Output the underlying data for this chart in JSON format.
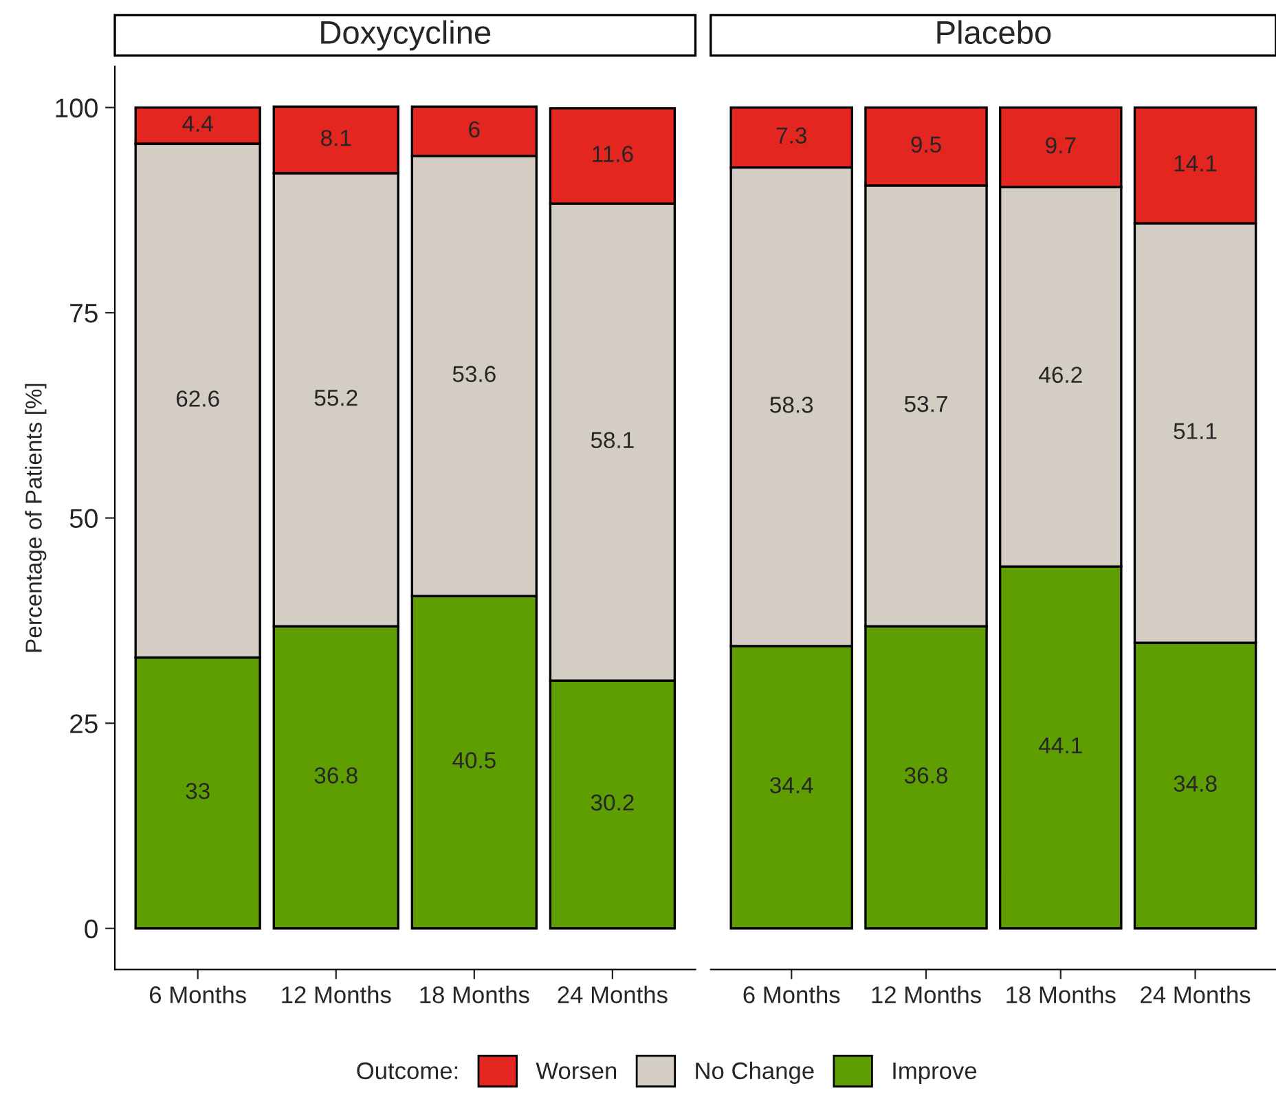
{
  "chart_data": [
    {
      "type": "bar",
      "title": "Doxycycline",
      "ylabel": "Percentage of Patients [%]",
      "categories": [
        "6 Months",
        "12 Months",
        "18 Months",
        "24 Months"
      ],
      "stacked": true,
      "data_labels": true,
      "ylim": [
        -5,
        105
      ],
      "yticks": [
        0,
        25,
        50,
        75,
        100
      ],
      "grid": false,
      "legend": "bottom",
      "legend_title": "Outcome:",
      "series": [
        {
          "name": "Improve",
          "color": "#5f9e00",
          "values": [
            33,
            36.8,
            40.5,
            30.2
          ]
        },
        {
          "name": "No Change",
          "color": "#d3cdc3",
          "values": [
            62.6,
            55.2,
            53.6,
            58.1
          ]
        },
        {
          "name": "Worsen",
          "color": "#e3261f",
          "values": [
            4.4,
            8.1,
            6,
            11.6
          ]
        }
      ]
    },
    {
      "type": "bar",
      "title": "Placebo",
      "categories": [
        "6 Months",
        "12 Months",
        "18 Months",
        "24 Months"
      ],
      "stacked": true,
      "data_labels": true,
      "grid": false,
      "tick_labels": "x",
      "series": [
        {
          "color": "#5f9e00",
          "values": [
            34.4,
            36.8,
            44.1,
            34.8
          ]
        },
        {
          "color": "#d3cdc3",
          "values": [
            58.3,
            53.7,
            46.2,
            51.1
          ]
        },
        {
          "color": "#e3261f",
          "values": [
            7.3,
            9.5,
            9.7,
            14.1
          ]
        }
      ]
    }
  ]
}
